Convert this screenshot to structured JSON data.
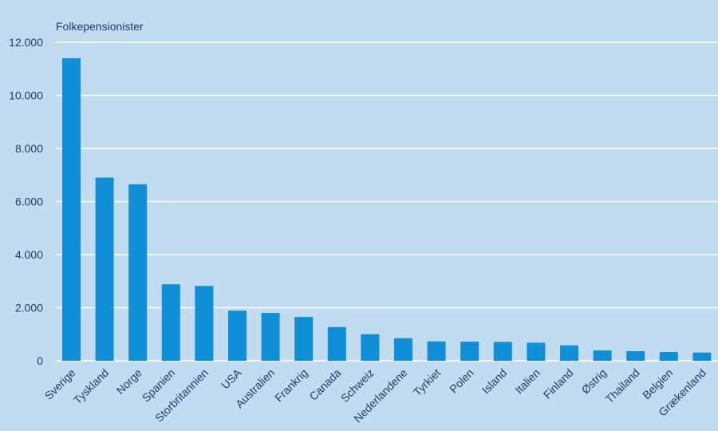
{
  "chart_data": {
    "type": "bar",
    "title": "",
    "xlabel": "",
    "ylabel": "Folkepensionister",
    "categories": [
      "Sverige",
      "Tyskland",
      "Norge",
      "Spanien",
      "Storbritannien",
      "USA",
      "Australien",
      "Frankrig",
      "Canada",
      "Schweiz",
      "Nederlandene",
      "Tyrkiet",
      "Polen",
      "Island",
      "Italien",
      "Finland",
      "Østrig",
      "Thailand",
      "Belgien",
      "Grækenland"
    ],
    "values": [
      11400,
      6900,
      6650,
      2880,
      2820,
      1890,
      1800,
      1650,
      1270,
      1000,
      850,
      730,
      720,
      710,
      680,
      580,
      390,
      360,
      330,
      310
    ],
    "ylim": [
      0,
      12000
    ],
    "yticks": [
      0,
      2000,
      4000,
      6000,
      8000,
      10000,
      12000
    ],
    "ytick_labels": [
      "0",
      "2.000",
      "4.000",
      "6.000",
      "8.000",
      "10.000",
      "12.000"
    ],
    "grid": true,
    "legend": "none",
    "colors": {
      "background": "#c1dcf1",
      "bar": "#0e8fd8",
      "grid": "#ffffff",
      "text": "#1f3a6d"
    }
  }
}
